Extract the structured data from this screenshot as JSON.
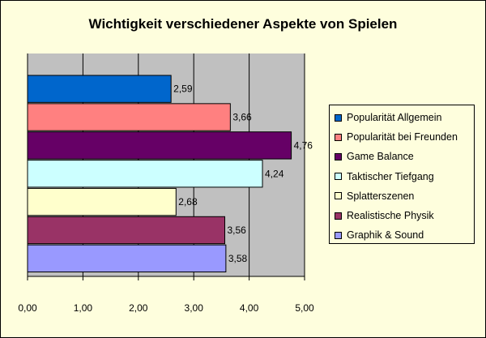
{
  "chart_data": {
    "type": "bar",
    "orientation": "horizontal",
    "title": "Wichtigkeit verschiedener Aspekte von Spielen",
    "xlim": [
      0,
      5
    ],
    "x_ticks": [
      "0,00",
      "1,00",
      "2,00",
      "3,00",
      "4,00",
      "5,00"
    ],
    "grid": "vertical",
    "plot_background": "#c0c0c0",
    "legend_position": "right",
    "series": [
      {
        "name": "Popularität Allgemein",
        "value": 2.59,
        "label": "2,59",
        "color": "#0066cc"
      },
      {
        "name": "Popularität bei Freunden",
        "value": 3.66,
        "label": "3,66",
        "color": "#ff8080"
      },
      {
        "name": "Game Balance",
        "value": 4.76,
        "label": "4,76",
        "color": "#660066"
      },
      {
        "name": "Taktischer Tiefgang",
        "value": 4.24,
        "label": "4,24",
        "color": "#ccffff"
      },
      {
        "name": "Splatterszenen",
        "value": 2.68,
        "label": "2,68",
        "color": "#ffffcc"
      },
      {
        "name": "Realistische Physik",
        "value": 3.56,
        "label": "3,56",
        "color": "#993366"
      },
      {
        "name": "Graphik & Sound",
        "value": 3.58,
        "label": "3,58",
        "color": "#9999ff"
      }
    ]
  }
}
